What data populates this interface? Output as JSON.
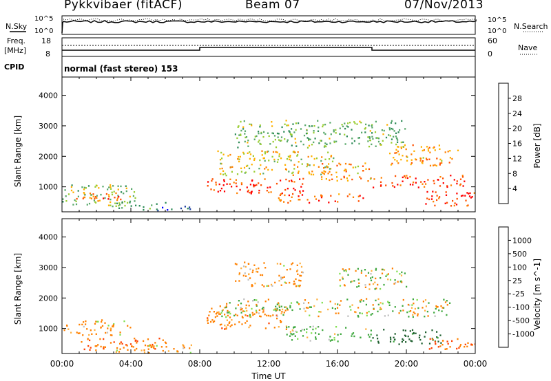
{
  "header": {
    "station": "Pykkvibaer (fitACF)",
    "beam": "Beam 07",
    "date": "07/Nov/2013"
  },
  "nsky_panel": {
    "left_label": "N.Sky",
    "left_ticks": [
      "10^5",
      "10^0"
    ],
    "right_ticks": [
      "10^5",
      "10^0"
    ],
    "right_label": "N.Search"
  },
  "freq_panel": {
    "left_label_line1": "Freq.",
    "left_label_line2": "[MHz]",
    "left_ticks": [
      "18",
      "8"
    ],
    "right_ticks": [
      "60",
      "0"
    ],
    "right_label": "Nave"
  },
  "cpid_panel": {
    "label": "CPID",
    "text": "normal (fast stereo) 153"
  },
  "colors": {
    "power_scale": [
      "#0000ff",
      "#1e3fa0",
      "#2e8b57",
      "#58a86a",
      "#9acd32",
      "#ffb000",
      "#ff8000",
      "#ff5000",
      "#ff0000"
    ],
    "velocity_scale": [
      "#ff0000",
      "#ff4000",
      "#ff8000",
      "#ffb040",
      "#c0c0c0",
      "#80e050",
      "#40a840",
      "#206030",
      "#2040c0"
    ]
  },
  "chart_data": [
    {
      "type": "heatmap",
      "title": "",
      "xlabel": "Time UT",
      "ylabel": "Slant Range [km]",
      "x_ticks": [
        "00:00",
        "04:00",
        "08:00",
        "12:00",
        "16:00",
        "20:00",
        "00:00"
      ],
      "y_ticks": [
        "1000",
        "2000",
        "3000",
        "4000"
      ],
      "ylim": [
        180,
        4600
      ],
      "colorbar": {
        "label": "Power [dB]",
        "ticks": [
          "4",
          "8",
          "12",
          "16",
          "20",
          "24",
          "28"
        ],
        "range": [
          0,
          30
        ]
      },
      "regions": [
        {
          "t": [
            0,
            4.3
          ],
          "r": [
            400,
            1100
          ],
          "value": 14
        },
        {
          "t": [
            0.8,
            3.5
          ],
          "r": [
            550,
            850
          ],
          "value": 25
        },
        {
          "t": [
            2.5,
            6.0
          ],
          "r": [
            300,
            550
          ],
          "value": 12
        },
        {
          "t": [
            4.5,
            7.5
          ],
          "r": [
            250,
            400
          ],
          "value": 6
        },
        {
          "t": [
            8.3,
            14.0
          ],
          "r": [
            800,
            1300
          ],
          "value": 27
        },
        {
          "t": [
            9.0,
            16.0
          ],
          "r": [
            1400,
            2200
          ],
          "value": 17
        },
        {
          "t": [
            12.5,
            17.5
          ],
          "r": [
            500,
            800
          ],
          "value": 24
        },
        {
          "t": [
            15.0,
            18.0
          ],
          "r": [
            1200,
            1800
          ],
          "value": 20
        },
        {
          "t": [
            18.0,
            23.5
          ],
          "r": [
            1000,
            1400
          ],
          "value": 26
        },
        {
          "t": [
            19.0,
            23.0
          ],
          "r": [
            1700,
            2400
          ],
          "value": 21
        },
        {
          "t": [
            21.0,
            24.0
          ],
          "r": [
            400,
            900
          ],
          "value": 27
        },
        {
          "t": [
            10.0,
            20.0
          ],
          "r": [
            2300,
            3200
          ],
          "value": 13
        }
      ]
    },
    {
      "type": "heatmap",
      "title": "",
      "xlabel": "Time UT",
      "ylabel": "Slant Range [km]",
      "x_ticks": [
        "00:00",
        "04:00",
        "08:00",
        "12:00",
        "16:00",
        "20:00",
        "00:00"
      ],
      "y_ticks": [
        "1000",
        "2000",
        "3000",
        "4000"
      ],
      "ylim": [
        180,
        4600
      ],
      "colorbar": {
        "label": "Velocity [m s^-1]",
        "ticks": [
          "1000",
          "500",
          "100",
          "25",
          "-25",
          "-100",
          "-500",
          "-1000"
        ],
        "range": [
          -1200,
          1200
        ]
      },
      "regions": [
        {
          "t": [
            0,
            4.0
          ],
          "r": [
            800,
            1300
          ],
          "value": -150
        },
        {
          "t": [
            1.0,
            6.0
          ],
          "r": [
            300,
            700
          ],
          "value": -400
        },
        {
          "t": [
            3.0,
            7.5
          ],
          "r": [
            200,
            500
          ],
          "value": -150
        },
        {
          "t": [
            8.3,
            13.0
          ],
          "r": [
            1000,
            1700
          ],
          "value": -300
        },
        {
          "t": [
            9.0,
            22.5
          ],
          "r": [
            1400,
            2000
          ],
          "value": 0
        },
        {
          "t": [
            13.0,
            18.0
          ],
          "r": [
            600,
            1100
          ],
          "value": 200
        },
        {
          "t": [
            18.0,
            22.0
          ],
          "r": [
            500,
            1000
          ],
          "value": 700
        },
        {
          "t": [
            16.0,
            20.0
          ],
          "r": [
            2300,
            3000
          ],
          "value": 0
        },
        {
          "t": [
            10.0,
            14.0
          ],
          "r": [
            2400,
            3200
          ],
          "value": -200
        },
        {
          "t": [
            21.0,
            24.0
          ],
          "r": [
            300,
            700
          ],
          "value": -500
        }
      ]
    }
  ]
}
